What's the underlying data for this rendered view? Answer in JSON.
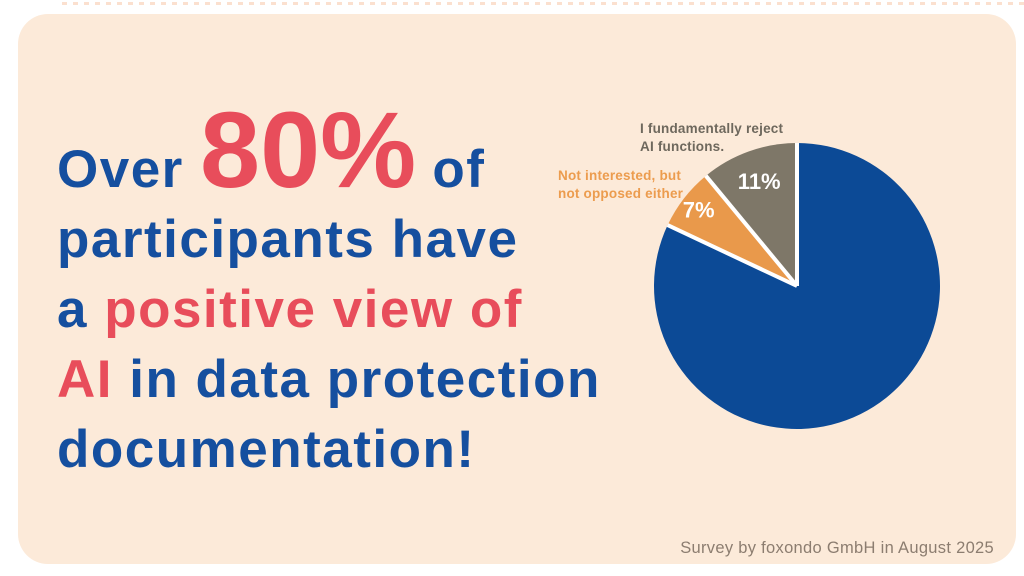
{
  "page": {
    "background_color": "#ffffff",
    "card_color": "#fcead9"
  },
  "headline": {
    "line1_pre": "Over ",
    "line1_big": "80%",
    "line1_post": " of",
    "line2": "participants have",
    "line3_pre": "a ",
    "line3_red": "positive view of",
    "line4_red": "AI",
    "line4_post": " in data protection",
    "line5": "documentation!",
    "blue_color": "#154f9f",
    "red_color": "#e84d5b"
  },
  "chart_data": {
    "type": "pie",
    "title": "",
    "total": 100,
    "start_angle_deg": 0,
    "direction": "clockwise",
    "legend_position": "callouts-left",
    "separator_color": "#ffffff",
    "pct_label_color": "#ffffff",
    "slices": [
      {
        "label": "",
        "value": 82,
        "color": "#0c4a96",
        "pct_label": ""
      },
      {
        "label": "Not interested, but not opposed either",
        "value": 7,
        "color": "#e9994b",
        "pct_label": "7%",
        "callout_lines": [
          "Not interested, but",
          "not opposed either"
        ],
        "callout_color": "#ec9c4e",
        "label_r": 0.87
      },
      {
        "label": "I fundamentally reject AI functions.",
        "value": 11,
        "color": "#7e7768",
        "pct_label": "11%",
        "callout_lines": [
          "I fundamentally reject",
          "AI functions."
        ],
        "callout_color": "#6e685d",
        "label_r": 0.78
      }
    ]
  },
  "footer": {
    "text": "Survey by foxondo GmbH in August 2025",
    "color": "#8c7d70"
  }
}
